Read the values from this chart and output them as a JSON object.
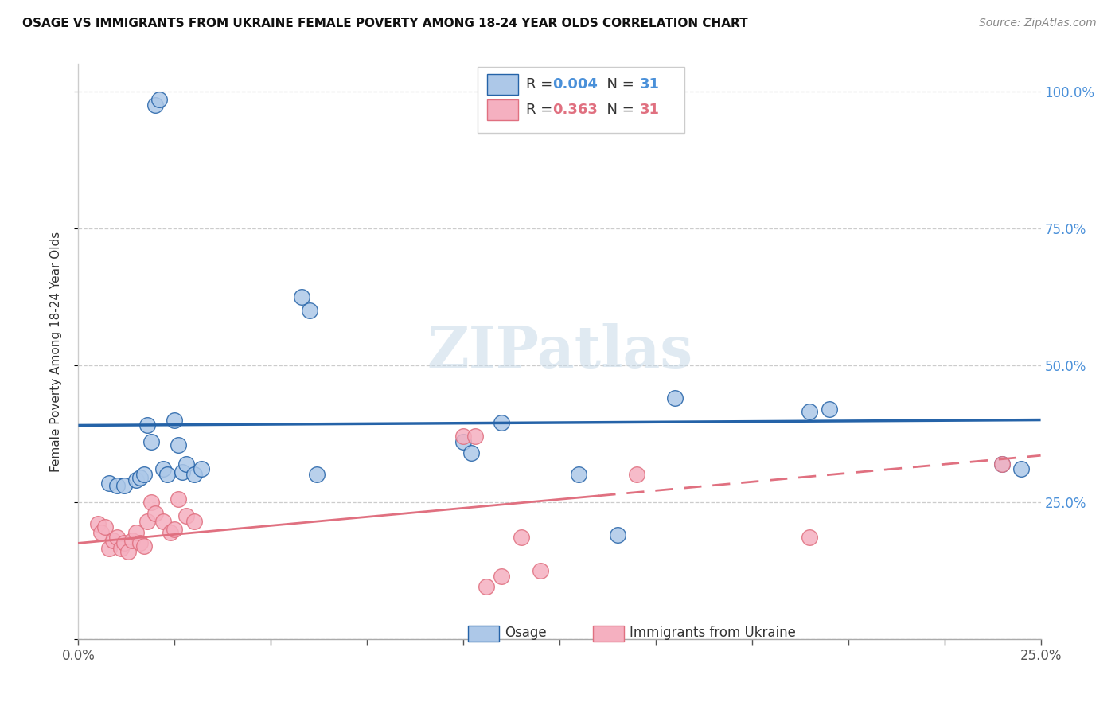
{
  "title": "OSAGE VS IMMIGRANTS FROM UKRAINE FEMALE POVERTY AMONG 18-24 YEAR OLDS CORRELATION CHART",
  "source": "Source: ZipAtlas.com",
  "ylabel": "Female Poverty Among 18-24 Year Olds",
  "series1_color": "#adc8e8",
  "series2_color": "#f5b0c0",
  "trend1_color": "#2563a8",
  "trend2_color": "#e07080",
  "watermark_text": "ZIPatlas",
  "xlim": [
    0.0,
    0.25
  ],
  "ylim": [
    0.0,
    1.05
  ],
  "osage_x": [
    0.008,
    0.01,
    0.012,
    0.015,
    0.016,
    0.017,
    0.018,
    0.019,
    0.02,
    0.021,
    0.022,
    0.023,
    0.025,
    0.026,
    0.027,
    0.028,
    0.03,
    0.032,
    0.058,
    0.06,
    0.062,
    0.1,
    0.102,
    0.11,
    0.13,
    0.14,
    0.155,
    0.19,
    0.195,
    0.24,
    0.245
  ],
  "osage_y": [
    0.285,
    0.28,
    0.28,
    0.29,
    0.295,
    0.3,
    0.39,
    0.36,
    0.975,
    0.985,
    0.31,
    0.3,
    0.4,
    0.355,
    0.305,
    0.32,
    0.3,
    0.31,
    0.625,
    0.6,
    0.3,
    0.36,
    0.34,
    0.395,
    0.3,
    0.19,
    0.44,
    0.415,
    0.42,
    0.32,
    0.31
  ],
  "ukraine_x": [
    0.005,
    0.006,
    0.007,
    0.008,
    0.009,
    0.01,
    0.011,
    0.012,
    0.013,
    0.014,
    0.015,
    0.016,
    0.017,
    0.018,
    0.019,
    0.02,
    0.022,
    0.024,
    0.025,
    0.026,
    0.028,
    0.03,
    0.1,
    0.103,
    0.106,
    0.11,
    0.115,
    0.12,
    0.145,
    0.19,
    0.24
  ],
  "ukraine_y": [
    0.21,
    0.195,
    0.205,
    0.165,
    0.18,
    0.185,
    0.165,
    0.175,
    0.16,
    0.18,
    0.195,
    0.175,
    0.17,
    0.215,
    0.25,
    0.23,
    0.215,
    0.195,
    0.2,
    0.255,
    0.225,
    0.215,
    0.37,
    0.37,
    0.095,
    0.115,
    0.185,
    0.125,
    0.3,
    0.185,
    0.32
  ],
  "trend1_y_at_0": 0.39,
  "trend1_y_at_025": 0.4,
  "trend2_y_at_0": 0.175,
  "trend2_y_at_025": 0.335,
  "trend2_dash_start": 0.135,
  "legend_r1": "0.004",
  "legend_r2": "0.363",
  "legend_n1": "31",
  "legend_n2": "31",
  "legend_color": "#4a90d9",
  "legend_color2": "#e07080",
  "bottom_legend_label1": "Osage",
  "bottom_legend_label2": "Immigrants from Ukraine"
}
